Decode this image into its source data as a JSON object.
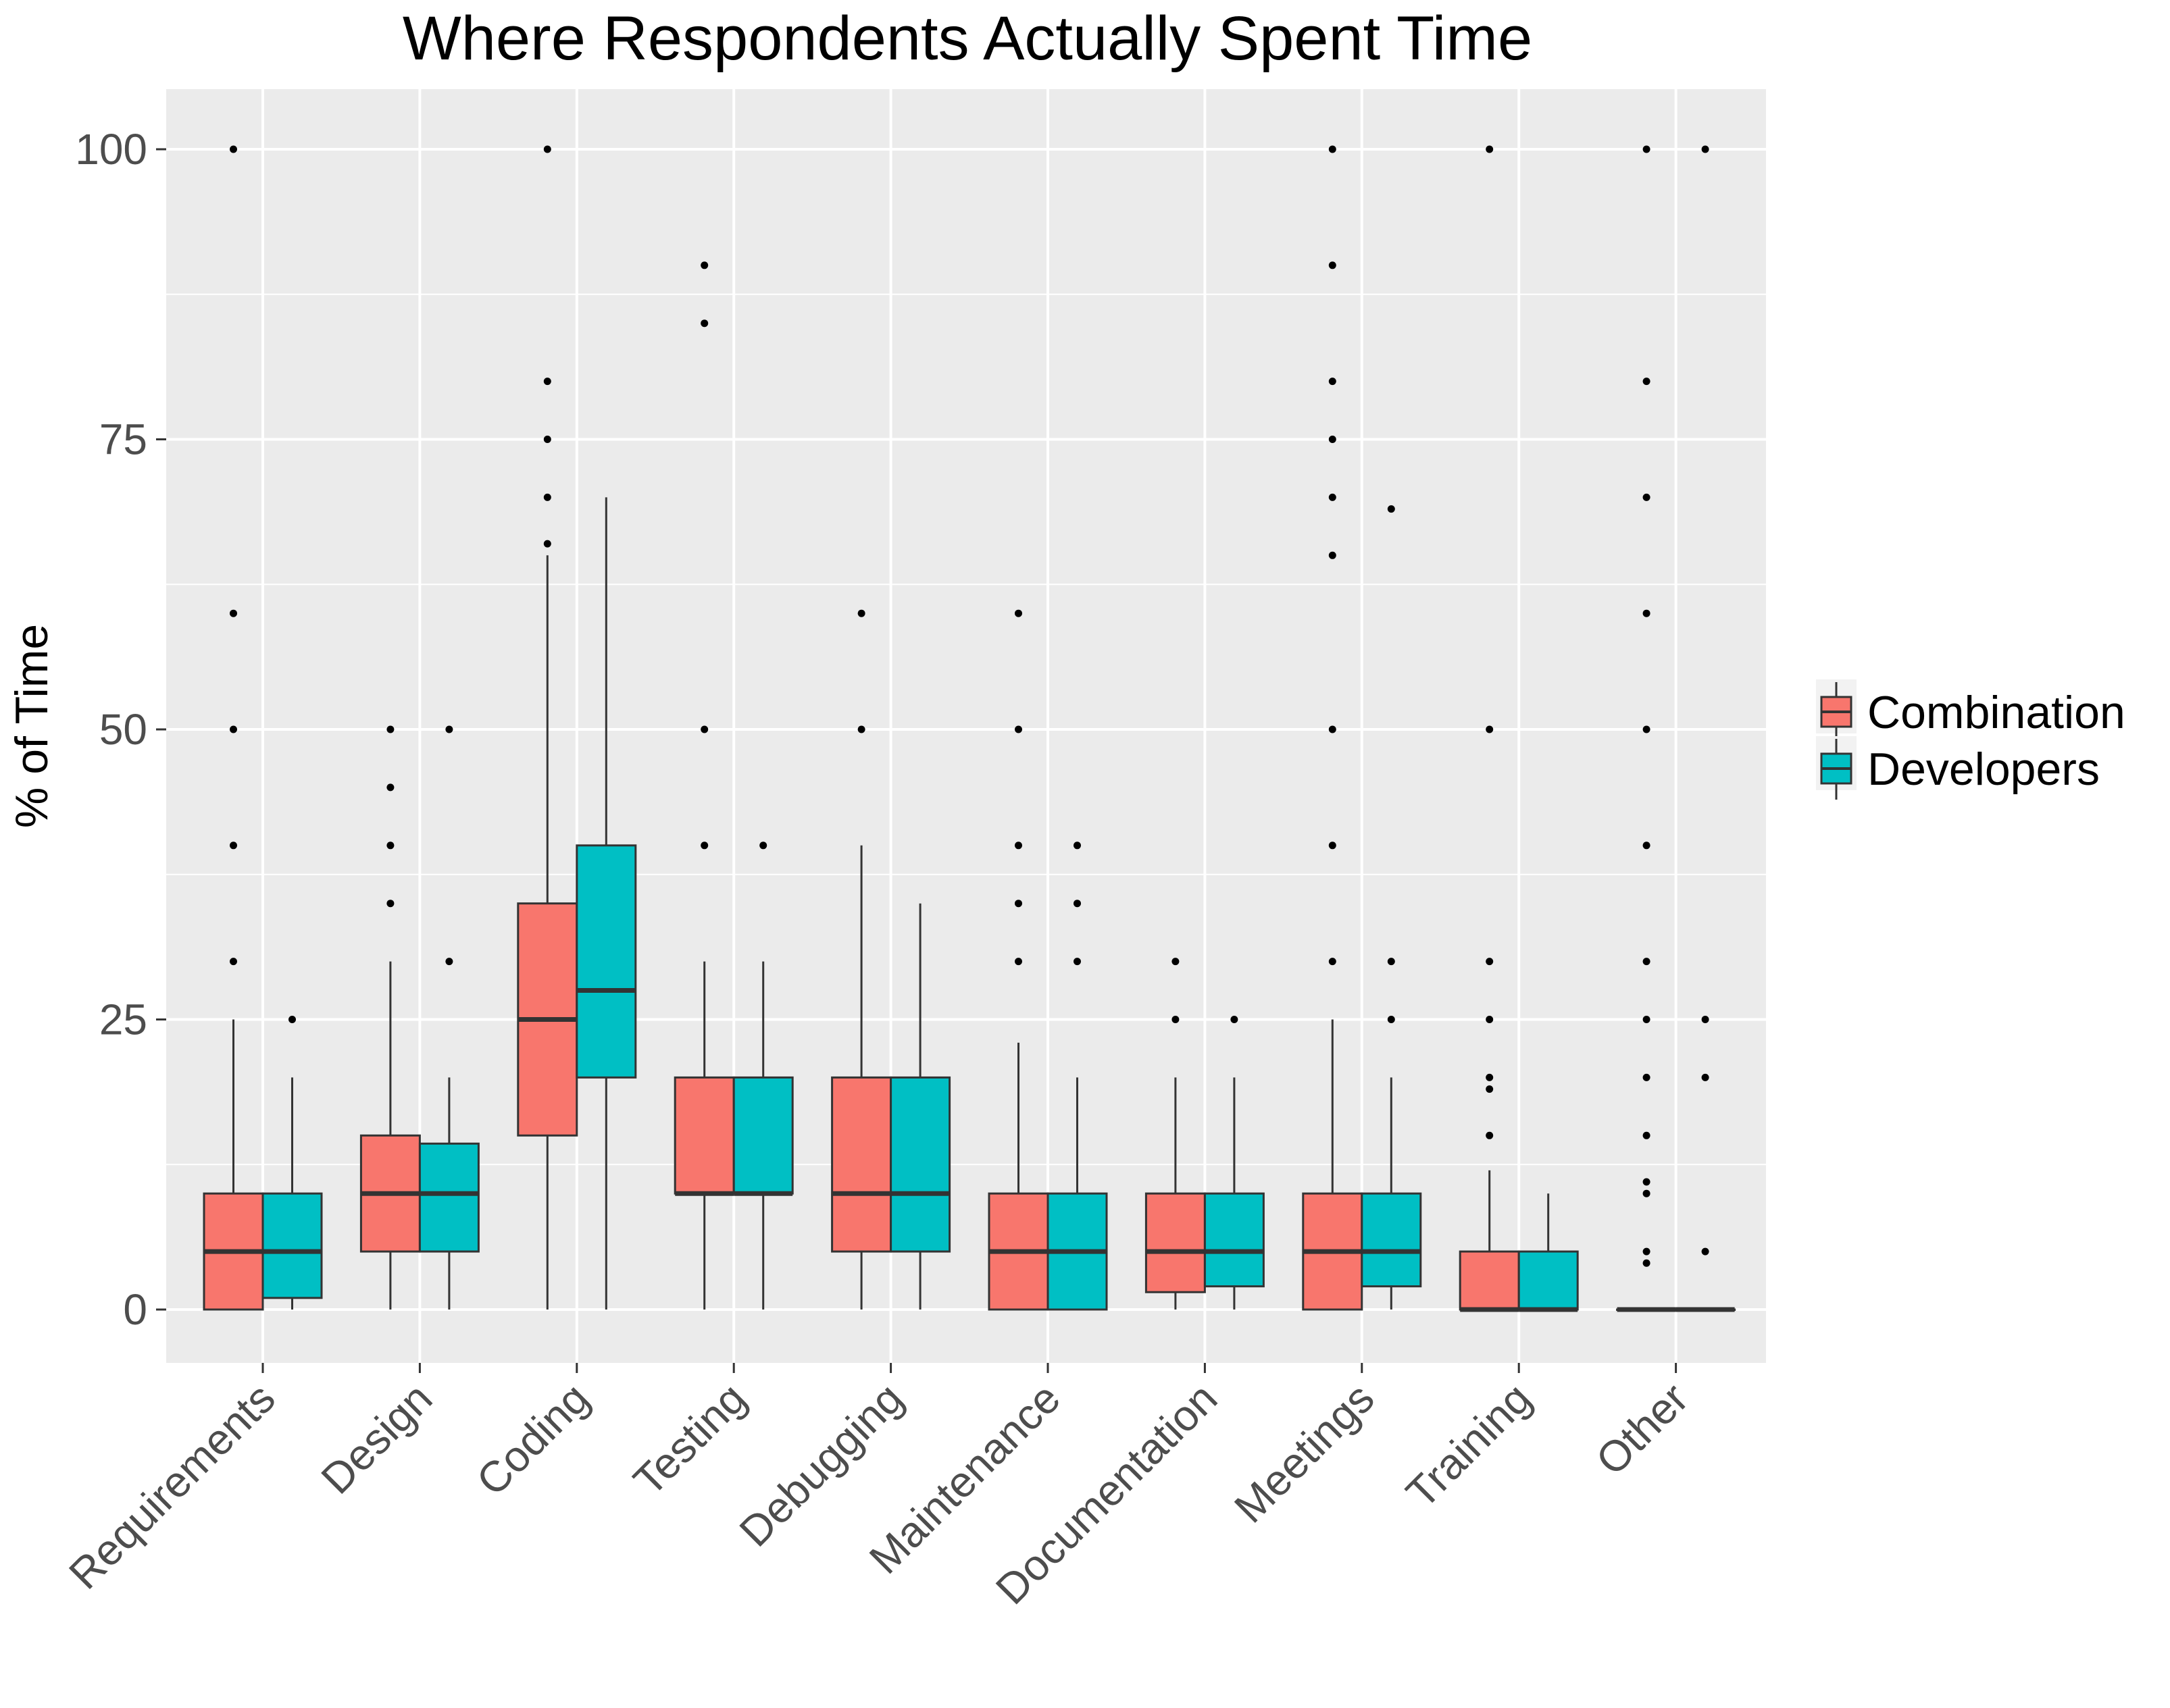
{
  "chart_data": {
    "type": "boxplot",
    "title": "Where Respondents Actually Spent Time",
    "xlabel": "",
    "ylabel": "% of Time",
    "ylim": [
      -5,
      105
    ],
    "yticks": [
      0,
      25,
      50,
      75,
      100
    ],
    "grid": true,
    "legend_position": "right",
    "categories": [
      "Requirements",
      "Design",
      "Coding",
      "Testing",
      "Debugging",
      "Maintenance",
      "Documentation",
      "Meetings",
      "Training",
      "Other"
    ],
    "series": [
      {
        "name": "Combination",
        "color": "#F8766D",
        "boxes": [
          {
            "low": 0,
            "q1": 0,
            "median": 5,
            "q3": 10,
            "high": 25,
            "outliers": [
              30,
              40,
              50,
              60,
              100
            ]
          },
          {
            "low": 0,
            "q1": 5,
            "median": 10,
            "q3": 15,
            "high": 30,
            "outliers": [
              35,
              40,
              45,
              50
            ]
          },
          {
            "low": 0,
            "q1": 15,
            "median": 25,
            "q3": 35,
            "high": 65,
            "outliers": [
              66,
              70,
              75,
              80,
              100
            ]
          },
          {
            "low": 0,
            "q1": 10,
            "median": 10,
            "q3": 20,
            "high": 30,
            "outliers": [
              40,
              50,
              85,
              90
            ]
          },
          {
            "low": 0,
            "q1": 5,
            "median": 10,
            "q3": 20,
            "high": 40,
            "outliers": [
              50,
              60
            ]
          },
          {
            "low": 0,
            "q1": 0,
            "median": 5,
            "q3": 10,
            "high": 23,
            "outliers": [
              30,
              35,
              40,
              50,
              60
            ]
          },
          {
            "low": 0,
            "q1": 1.5,
            "median": 5,
            "q3": 10,
            "high": 20,
            "outliers": [
              25,
              30
            ]
          },
          {
            "low": 0,
            "q1": 0,
            "median": 5,
            "q3": 10,
            "high": 25,
            "outliers": [
              30,
              40,
              50,
              65,
              70,
              75,
              80,
              90,
              100
            ]
          },
          {
            "low": 0,
            "q1": 0,
            "median": 0,
            "q3": 5,
            "high": 12,
            "outliers": [
              15,
              19,
              20,
              25,
              30,
              50,
              100
            ]
          },
          {
            "low": 0,
            "q1": 0,
            "median": 0,
            "q3": 0,
            "high": 0,
            "outliers": [
              4,
              5,
              10,
              11,
              15,
              20,
              25,
              30,
              40,
              50,
              60,
              70,
              80,
              100
            ]
          }
        ]
      },
      {
        "name": "Developers",
        "color": "#00BFC4",
        "boxes": [
          {
            "low": 0,
            "q1": 1,
            "median": 5,
            "q3": 10,
            "high": 20,
            "outliers": [
              25
            ]
          },
          {
            "low": 0,
            "q1": 5,
            "median": 10,
            "q3": 14.3,
            "high": 20,
            "outliers": [
              30,
              50
            ]
          },
          {
            "low": 0,
            "q1": 20,
            "median": 27.5,
            "q3": 40,
            "high": 70,
            "outliers": []
          },
          {
            "low": 0,
            "q1": 10,
            "median": 10,
            "q3": 20,
            "high": 30,
            "outliers": [
              40
            ]
          },
          {
            "low": 0,
            "q1": 5,
            "median": 10,
            "q3": 20,
            "high": 35,
            "outliers": []
          },
          {
            "low": 0,
            "q1": 0,
            "median": 5,
            "q3": 10,
            "high": 20,
            "outliers": [
              30,
              35,
              40
            ]
          },
          {
            "low": 0,
            "q1": 2,
            "median": 5,
            "q3": 10,
            "high": 20,
            "outliers": [
              25
            ]
          },
          {
            "low": 0,
            "q1": 2,
            "median": 5,
            "q3": 10,
            "high": 20,
            "outliers": [
              25,
              30,
              69
            ]
          },
          {
            "low": 0,
            "q1": 0,
            "median": 0,
            "q3": 5,
            "high": 10,
            "outliers": []
          },
          {
            "low": 0,
            "q1": 0,
            "median": 0,
            "q3": 0,
            "high": 0,
            "outliers": [
              5,
              20,
              25,
              100
            ]
          }
        ]
      }
    ]
  }
}
